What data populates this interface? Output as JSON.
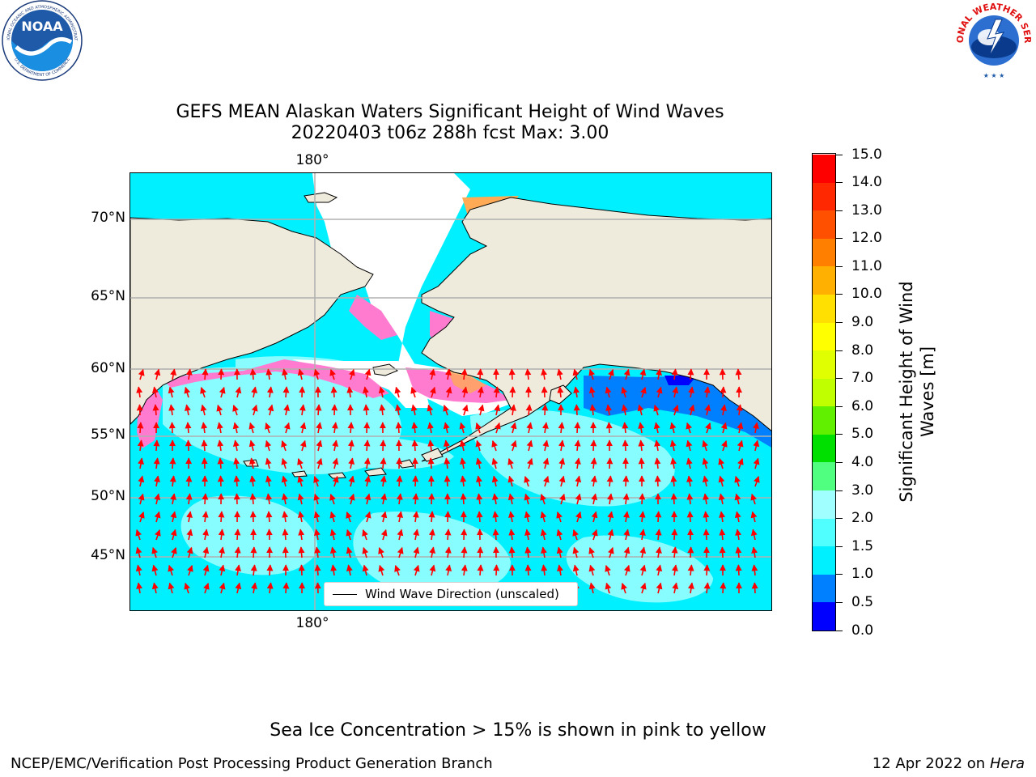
{
  "header": {
    "title_line1": "GEFS MEAN Alaskan Waters Significant Height of Wind Waves",
    "title_line2": "20220403 t06z 288h fcst   Max: 3.00"
  },
  "logos": {
    "noara_text": "NOAA",
    "noaa_ring_top": "NATIONAL OCEANIC AND ATMOSPHERIC ADMINISTRATION",
    "noaa_ring_bottom": "U.S. DEPARTMENT OF COMMERCE",
    "nws_ring": "NATIONAL WEATHER SERVICE"
  },
  "map": {
    "lon_top": "180°",
    "lon_bottom": "180°",
    "lat_labels": [
      "70°N",
      "65°N",
      "60°N",
      "55°N",
      "50°N",
      "45°N"
    ],
    "legend_label": "Wind Wave Direction (unscaled)",
    "colors": {
      "land": "#efebdc",
      "ice_pink": "#ff7bd0",
      "ice_orange": "#ffaa55",
      "ocean_cyan": "#00f0ff",
      "ocean_light": "#a0ffff",
      "ocean_blue": "#0080ff",
      "arrows": "#ff0000",
      "grid": "#b0b0b0"
    }
  },
  "colorbar": {
    "title_line1": "Significant Height of Wind",
    "title_line2": "Waves [m]",
    "ticks": [
      "0.0",
      "0.5",
      "1.0",
      "1.5",
      "2.0",
      "3.0",
      "4.0",
      "5.0",
      "6.0",
      "7.0",
      "8.0",
      "9.0",
      "10.0",
      "11.0",
      "12.0",
      "13.0",
      "14.0",
      "15.0"
    ],
    "colors": [
      "#0000ff",
      "#0080ff",
      "#00f0ff",
      "#50ffff",
      "#a0ffff",
      "#50ff80",
      "#00e000",
      "#60f000",
      "#c0ff00",
      "#e0ff00",
      "#ffff00",
      "#ffe000",
      "#ffb000",
      "#ff8000",
      "#ff5000",
      "#ff2800",
      "#ff0000"
    ]
  },
  "footer": {
    "ice_note": "Sea Ice Concentration > 15% is shown in pink to yellow",
    "credit_left": "NCEP/EMC/Verification Post Processing Product Generation Branch",
    "credit_date": "12 Apr 2022 on",
    "credit_machine": "Hera"
  }
}
